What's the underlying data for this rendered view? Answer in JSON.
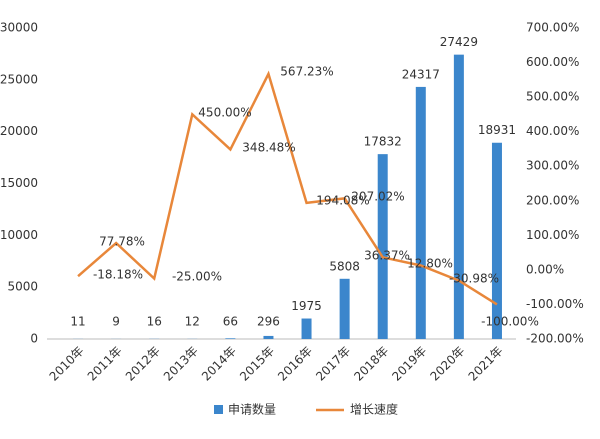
{
  "chart_data": {
    "type": "bar_line",
    "categories": [
      "2010年",
      "2011年",
      "2012年",
      "2013年",
      "2014年",
      "2015年",
      "2016年",
      "2017年",
      "2018年",
      "2019年",
      "2020年",
      "2021年"
    ],
    "series": [
      {
        "name": "申请数量",
        "type": "bar",
        "color": "#3b86cc",
        "values": [
          11,
          9,
          16,
          12,
          66,
          296,
          1975,
          5808,
          17832,
          24317,
          27429,
          18931
        ]
      },
      {
        "name": "增长速度",
        "type": "line",
        "axis": "y2",
        "color": "#e8873a",
        "values": [
          -18.18,
          77.78,
          -25.0,
          450.0,
          348.48,
          567.23,
          194.08,
          207.02,
          36.37,
          12.8,
          -30.98,
          -100.0
        ],
        "value_labels": [
          "-18.18%",
          "77.78%",
          "-25.00%",
          "450.00%",
          "348.48%",
          "567.23%",
          "194.08%",
          "207.02%",
          "36.37%",
          "12.80%",
          "-30.98%",
          "-100.00%"
        ]
      }
    ],
    "ylim": [
      0,
      30000
    ],
    "yticks": [
      0,
      5000,
      10000,
      15000,
      20000,
      25000,
      30000
    ],
    "y2lim": [
      -200,
      700
    ],
    "y2ticks": [
      {
        "value": -200,
        "label": "-200.00%"
      },
      {
        "value": -100,
        "label": "-100.00%"
      },
      {
        "value": 0,
        "label": "0.00%"
      },
      {
        "value": 100,
        "label": "100.00%"
      },
      {
        "value": 200,
        "label": "200.00%"
      },
      {
        "value": 300,
        "label": "300.00%"
      },
      {
        "value": 400,
        "label": "400.00%"
      },
      {
        "value": 500,
        "label": "500.00%"
      },
      {
        "value": 600,
        "label": "600.00%"
      },
      {
        "value": 700,
        "label": "700.00%"
      }
    ],
    "legend": "bottom",
    "grid": false
  }
}
